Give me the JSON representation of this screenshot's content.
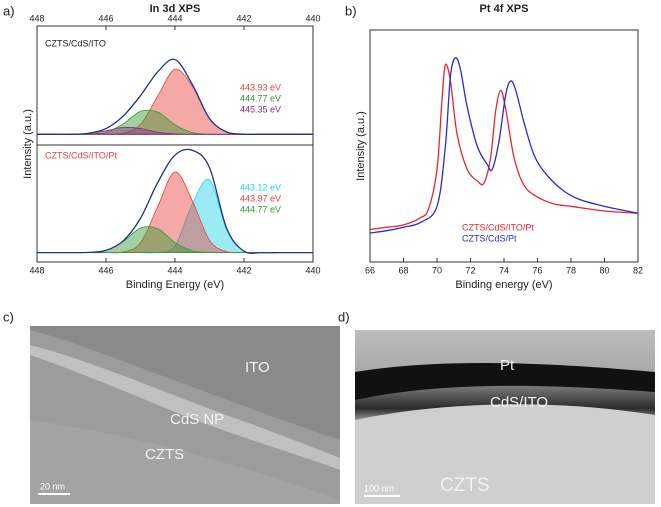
{
  "chart_data": [
    {
      "type": "area",
      "panel_label": "a)",
      "title": "In 3d XPS",
      "ylabel": "Intensity (a.u.)",
      "label": "CZTS/CdS/ITO",
      "x": [
        448,
        447.5,
        447,
        446.5,
        446,
        445.5,
        445,
        444.5,
        444,
        443.5,
        443,
        442.5,
        442,
        441.5,
        441,
        440.5,
        440
      ],
      "xlim": [
        448,
        440
      ],
      "xticks": [
        448,
        446,
        444,
        442,
        440
      ],
      "ylim": [
        0,
        100
      ],
      "series": [
        {
          "name": "443.93 eV",
          "color": "#e8413c",
          "values": [
            9,
            9,
            9,
            9,
            9,
            9.9,
            17.3,
            41.1,
            63.6,
            49.5,
            22.2,
            10.9,
            9.1,
            9,
            9,
            9,
            9
          ]
        },
        {
          "name": "444.77 eV",
          "color": "#2e9a2e",
          "values": [
            9,
            9,
            9,
            9.2,
            10.7,
            17.7,
            28.3,
            27.6,
            16.9,
            10.5,
            9.1,
            9,
            9,
            9,
            9,
            9,
            9
          ]
        },
        {
          "name": "445.35 eV",
          "color": "#8b2a8b",
          "values": [
            9,
            9,
            9,
            9.7,
            12,
            14.8,
            13.9,
            10.8,
            9.3,
            9,
            9,
            9,
            9,
            9,
            9,
            9,
            9
          ]
        },
        {
          "color": "#1f2f8a",
          "values": [
            9,
            9,
            9,
            9.9,
            13.8,
            24.4,
            41.5,
            61.5,
            71.8,
            51,
            22.3,
            10.9,
            9.1,
            9,
            9,
            9,
            9
          ]
        }
      ]
    },
    {
      "type": "area",
      "label": "CZTS/CdS/ITO/Pt",
      "label_color": "#e8413c",
      "xlabel": "Binding Energy (eV)",
      "x": [
        448,
        447.5,
        447,
        446.5,
        446,
        445.5,
        445,
        444.5,
        444,
        443.5,
        443,
        442.5,
        442,
        441.5,
        441,
        440.5,
        440
      ],
      "xlim": [
        448,
        440
      ],
      "xticks": [
        448,
        446,
        444,
        442,
        440
      ],
      "ylim": [
        0,
        100
      ],
      "series": [
        {
          "name": "443.12 eV",
          "color": "#22d3e6",
          "values": [
            8,
            8,
            8,
            8,
            8,
            8,
            8,
            8.2,
            13.8,
            49.5,
            70.1,
            27.6,
            9.3,
            8,
            8,
            8,
            8
          ]
        },
        {
          "name": "443.97 eV",
          "color": "#e8413c",
          "values": [
            8,
            8,
            8,
            8,
            8,
            8.6,
            16.3,
            47.4,
            77,
            52.4,
            18.5,
            8.9,
            8,
            8,
            8,
            8,
            8
          ]
        },
        {
          "name": "444.77 eV",
          "color": "#2e9a2e",
          "values": [
            8,
            8,
            8,
            8.2,
            9.9,
            17.5,
            29.1,
            28.4,
            16.6,
            9.6,
            8.1,
            8,
            8,
            8,
            8,
            8,
            8
          ]
        },
        {
          "color": "#1f2f8a",
          "values": [
            8,
            8,
            8,
            8.2,
            9.9,
            18.1,
            37.4,
            68,
            91.4,
            95.5,
            80.7,
            28.5,
            9.3,
            8,
            8,
            8,
            8
          ]
        }
      ]
    },
    {
      "type": "line",
      "panel_label": "b)",
      "title": "Pt 4f XPS",
      "ylabel": "Intensity (a.u.)",
      "xlabel": "Binding energy (eV)",
      "xlim": [
        66,
        82
      ],
      "xticks": [
        66,
        68,
        70,
        72,
        74,
        76,
        78,
        80,
        82
      ],
      "ylim": [
        0,
        100
      ],
      "series": [
        {
          "name": "CZTS/CdS/ITO/Pt",
          "color": "#e8262b",
          "x": [
            66,
            67,
            68,
            69,
            69.5,
            70,
            70.3,
            70.5,
            70.8,
            71.2,
            71.8,
            72.4,
            72.8,
            73.2,
            73.5,
            73.8,
            74.1,
            74.6,
            75.2,
            76,
            77,
            78,
            80,
            82
          ],
          "values": [
            14,
            15,
            16,
            19,
            23,
            40,
            70,
            85,
            78,
            55,
            40,
            35,
            34,
            45,
            65,
            74,
            66,
            45,
            33,
            28,
            25,
            24,
            22,
            21
          ]
        },
        {
          "name": "CZTS/CdS/Pt",
          "color": "#2a2ad0",
          "x": [
            66,
            67,
            68,
            69,
            70,
            70.5,
            70.8,
            71.1,
            71.4,
            71.8,
            72.4,
            73,
            73.3,
            73.7,
            74.1,
            74.4,
            74.7,
            75.2,
            75.8,
            76.5,
            77.5,
            78.5,
            80,
            82
          ],
          "values": [
            12.5,
            13.5,
            15,
            17,
            24,
            50,
            80,
            88,
            83,
            67,
            50,
            42,
            40,
            52,
            72,
            78,
            74,
            60,
            46,
            38,
            31,
            27,
            24,
            21
          ]
        }
      ]
    }
  ],
  "images": [
    {
      "label": "c)",
      "texts": [
        "ITO",
        "CdS NP",
        "CZTS",
        "20 nm"
      ]
    },
    {
      "label": "d)",
      "texts": [
        "Pt",
        "CdS/ITO",
        "CZTS",
        "100 nm"
      ]
    }
  ]
}
